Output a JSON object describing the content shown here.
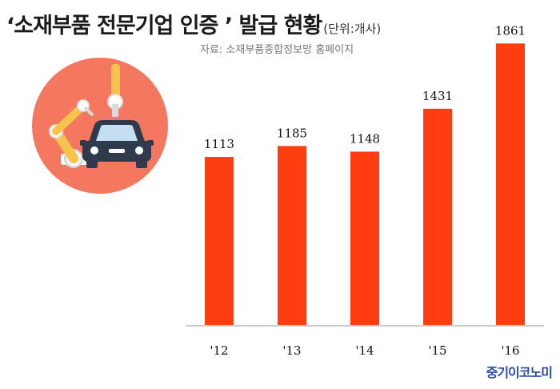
{
  "title": "‘소재부품 전문기업 인증 ’  발급 현황",
  "unit": "(단위:개사)",
  "source": "자료: 소재부품종합정보망 홈페이지",
  "brand": "중기이코노미",
  "illustration": {
    "icon": "robot-arm-car-icon",
    "circle_color": "#f4775f"
  },
  "chart_data": {
    "type": "bar",
    "categories": [
      "'12",
      "'13",
      "'14",
      "'15",
      "'16"
    ],
    "values": [
      1113,
      1185,
      1148,
      1431,
      1861
    ],
    "ylim": [
      0,
      2000
    ],
    "grid": false,
    "legend": "none",
    "bar_color": "#ff3d11",
    "axis_color": "#cccccc"
  }
}
